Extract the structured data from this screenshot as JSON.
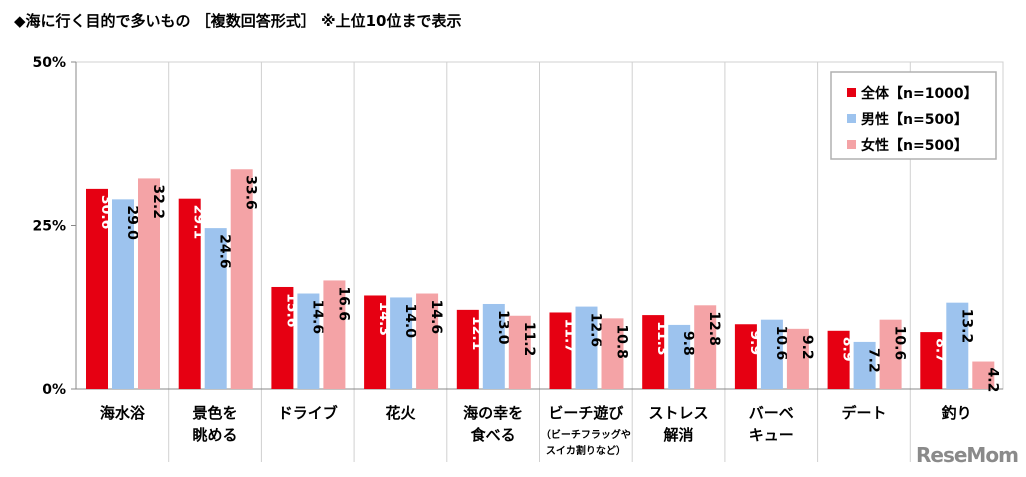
{
  "chart_data": {
    "type": "bar",
    "title": "◆海に行く目的で多いもの ［複数回答形式］ ※上位10位まで表示",
    "categories": [
      [
        "海水浴"
      ],
      [
        "景色を",
        "眺める"
      ],
      [
        "ドライブ"
      ],
      [
        "花火"
      ],
      [
        "海の幸を",
        "食べる"
      ],
      [
        "ビーチ遊び",
        "（ビーチフラッグや",
        "スイカ割りなど）"
      ],
      [
        "ストレス",
        "解消"
      ],
      [
        "バーベ",
        "キュー"
      ],
      [
        "デート"
      ],
      [
        "釣り"
      ]
    ],
    "series": [
      {
        "name": "全体【n=1000】",
        "color": "#e60012",
        "label_color": "#ffffff",
        "values": [
          30.6,
          29.1,
          15.6,
          14.3,
          12.1,
          11.7,
          11.3,
          9.9,
          8.9,
          8.7
        ]
      },
      {
        "name": "男性【n=500】",
        "color": "#9dc3ee",
        "label_color": "#000000",
        "values": [
          29.0,
          24.6,
          14.6,
          14.0,
          13.0,
          12.6,
          9.8,
          10.6,
          7.2,
          13.2
        ]
      },
      {
        "name": "女性【n=500】",
        "color": "#f4a3a6",
        "label_color": "#000000",
        "values": [
          32.2,
          33.6,
          16.6,
          14.6,
          11.2,
          10.8,
          12.8,
          9.2,
          10.6,
          4.2
        ]
      }
    ],
    "yticks": [
      "0%",
      "25%",
      "50%"
    ],
    "ytick_values": [
      0,
      25,
      50
    ],
    "ylim": [
      0,
      50
    ],
    "xlabel": "",
    "ylabel": "",
    "grid": false,
    "category_dividers": true,
    "legend_position": "top-right"
  },
  "logo": "ReseMom"
}
